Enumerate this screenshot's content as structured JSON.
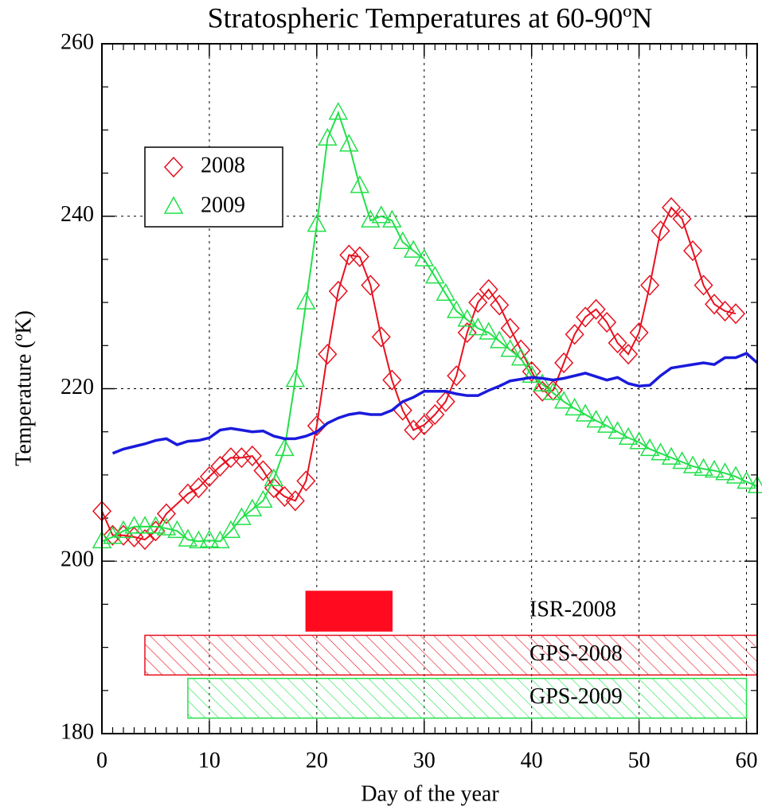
{
  "chart_data": {
    "type": "line",
    "title": "Stratospheric Temperatures at 60-90ºN",
    "xlabel": "Day of the year",
    "ylabel": "Temperature (ºK)",
    "xlim": [
      0,
      61
    ],
    "ylim": [
      180,
      260
    ],
    "xticks": [
      0,
      10,
      20,
      30,
      40,
      50,
      60
    ],
    "yticks": [
      180,
      200,
      220,
      240,
      260
    ],
    "xminorticks": [
      1,
      2,
      3,
      4,
      5,
      6,
      7,
      8,
      9,
      11,
      12,
      13,
      14,
      15,
      16,
      17,
      18,
      19,
      21,
      22,
      23,
      24,
      25,
      26,
      27,
      28,
      29,
      31,
      32,
      33,
      34,
      35,
      36,
      37,
      38,
      39,
      41,
      42,
      43,
      44,
      45,
      46,
      47,
      48,
      49,
      51,
      52,
      53,
      54,
      55,
      56,
      57,
      58,
      59
    ],
    "yminorticks": [
      185,
      190,
      195,
      205,
      210,
      215,
      225,
      230,
      235,
      245,
      250,
      255
    ],
    "grid": true,
    "legend": "upper left",
    "series": [
      {
        "name": "2008",
        "color": "#e8101e",
        "marker": "diamond",
        "x": [
          0,
          1,
          2,
          3,
          4,
          5,
          6,
          8,
          9,
          10,
          11,
          12,
          13,
          14,
          15,
          16,
          17,
          18,
          19,
          20,
          21,
          22,
          23,
          24,
          25,
          26,
          27,
          28,
          29,
          30,
          31,
          32,
          33,
          34,
          35,
          36,
          37,
          38,
          39,
          40,
          41,
          42,
          43,
          44,
          45,
          46,
          47,
          48,
          49,
          50,
          51,
          52,
          53,
          54,
          55,
          56,
          57,
          58,
          59
        ],
        "values": [
          205.8,
          203,
          203,
          202.8,
          202.5,
          203.5,
          205.5,
          207.8,
          208.5,
          209.8,
          211,
          212,
          212,
          212.2,
          210.5,
          208.5,
          207.5,
          207,
          209.3,
          215.7,
          224,
          231.3,
          235.5,
          235.3,
          232,
          226,
          221,
          217.5,
          215.2,
          215.8,
          217,
          218.5,
          221.5,
          226.5,
          230,
          231.5,
          229.7,
          227,
          224.5,
          222,
          219.7,
          219.8,
          223,
          226.3,
          228.3,
          229.2,
          227.7,
          225.3,
          224,
          226.5,
          232,
          238.3,
          241,
          239.7,
          236,
          232,
          229.8,
          229,
          228.7
        ]
      },
      {
        "name": "2009",
        "color": "#22e04a",
        "marker": "triangle",
        "x": [
          0,
          1,
          2,
          3,
          4,
          5,
          6,
          7,
          8,
          9,
          10,
          11,
          12,
          13,
          14,
          15,
          16,
          17,
          18,
          19,
          20,
          21,
          22,
          23,
          24,
          25,
          26,
          27,
          28,
          29,
          30,
          31,
          32,
          33,
          34,
          35,
          36,
          37,
          38,
          39,
          40,
          41,
          42,
          43,
          44,
          45,
          46,
          47,
          48,
          49,
          50,
          51,
          52,
          53,
          54,
          55,
          56,
          57,
          58,
          59,
          60,
          61
        ],
        "values": [
          202.3,
          202.8,
          203.5,
          204,
          204,
          204,
          203.8,
          203.5,
          202.5,
          202.3,
          202.4,
          202.3,
          203.5,
          205,
          206,
          207,
          209.5,
          213,
          221,
          230,
          239,
          249,
          252,
          248.3,
          243.5,
          239.5,
          240,
          239.5,
          237,
          236,
          235,
          233,
          231,
          229,
          228,
          227,
          226.5,
          225.5,
          224.5,
          223.5,
          221.5,
          220.5,
          219.5,
          218.5,
          217.7,
          217,
          216.3,
          215.7,
          215,
          214.3,
          213.8,
          213,
          212.5,
          212,
          211.5,
          211,
          210.7,
          210.5,
          210.2,
          209.8,
          209.2,
          208.7
        ]
      },
      {
        "color": "#1a1adc",
        "marker": null,
        "x": [
          1,
          2,
          3,
          4,
          5,
          6,
          7,
          8,
          9,
          10,
          11,
          12,
          13,
          14,
          15,
          16,
          17,
          18,
          19,
          20,
          21,
          22,
          23,
          24,
          25,
          26,
          27,
          28,
          29,
          30,
          31,
          32,
          33,
          34,
          35,
          36,
          37,
          38,
          39,
          40,
          41,
          42,
          43,
          44,
          45,
          46,
          47,
          48,
          49,
          50,
          51,
          52,
          53,
          54,
          55,
          56,
          57,
          58,
          59,
          60,
          61
        ],
        "values": [
          212.5,
          213,
          213.3,
          213.6,
          214,
          214.2,
          213.5,
          213.9,
          214,
          214.3,
          215.2,
          215.4,
          215.2,
          215,
          215.1,
          214.5,
          214.2,
          214.2,
          214.5,
          215,
          216,
          216.6,
          217,
          217.2,
          217,
          217,
          217.5,
          218.5,
          219,
          219.7,
          219.7,
          219.7,
          219.4,
          219.2,
          219.2,
          219.8,
          220.3,
          220.9,
          221.1,
          221.3,
          221.2,
          221,
          221.2,
          221.5,
          221.8,
          221.4,
          221,
          221.3,
          220.6,
          220.3,
          220.4,
          221.5,
          222.4,
          222.6,
          222.8,
          223,
          222.8,
          223.6,
          223.6,
          224.1,
          223
        ]
      }
    ],
    "bars": [
      {
        "label": "ISR-2008",
        "start": 19,
        "end": 27,
        "low": 191.9,
        "high": 196.5,
        "color": "#ff0a1e",
        "fill": "solid"
      },
      {
        "label": "GPS-2008",
        "start": 4,
        "end": 61,
        "low": 186.8,
        "high": 191.4,
        "color": "#e8101e",
        "fill": "hatch"
      },
      {
        "label": "GPS-2009",
        "start": 8,
        "end": 60,
        "low": 181.8,
        "high": 186.4,
        "color": "#22e04a",
        "fill": "hatch"
      }
    ]
  }
}
